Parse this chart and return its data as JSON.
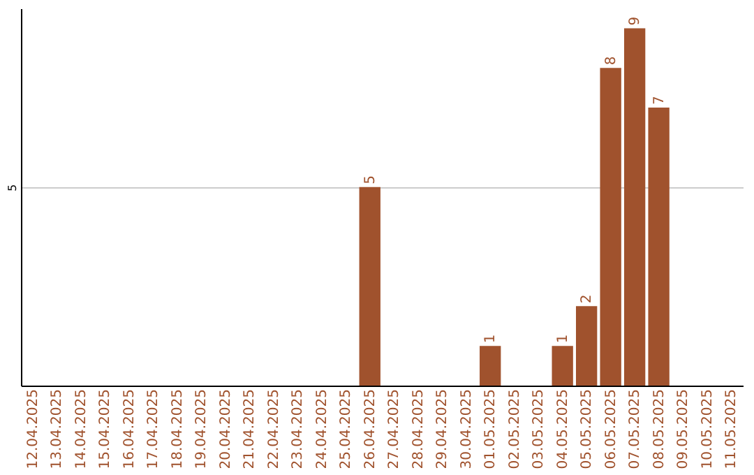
{
  "chart_data": {
    "type": "bar",
    "categories": [
      "12.04.2025",
      "13.04.2025",
      "14.04.2025",
      "15.04.2025",
      "16.04.2025",
      "17.04.2025",
      "18.04.2025",
      "19.04.2025",
      "20.04.2025",
      "21.04.2025",
      "22.04.2025",
      "23.04.2025",
      "24.04.2025",
      "25.04.2025",
      "26.04.2025",
      "27.04.2025",
      "28.04.2025",
      "29.04.2025",
      "30.04.2025",
      "01.05.2025",
      "02.05.2025",
      "03.05.2025",
      "04.05.2025",
      "05.05.2025",
      "06.05.2025",
      "07.05.2025",
      "08.05.2025",
      "09.05.2025",
      "10.05.2025",
      "11.05.2025"
    ],
    "values": [
      null,
      null,
      null,
      null,
      null,
      null,
      null,
      null,
      null,
      null,
      null,
      null,
      null,
      null,
      5,
      null,
      null,
      null,
      null,
      1,
      null,
      null,
      1,
      2,
      8,
      9,
      7,
      null,
      null,
      null
    ],
    "color": "#a0522d",
    "ylim": [
      0,
      9.5
    ],
    "yticks": [
      5
    ],
    "grid": "y",
    "data_labels": true
  }
}
